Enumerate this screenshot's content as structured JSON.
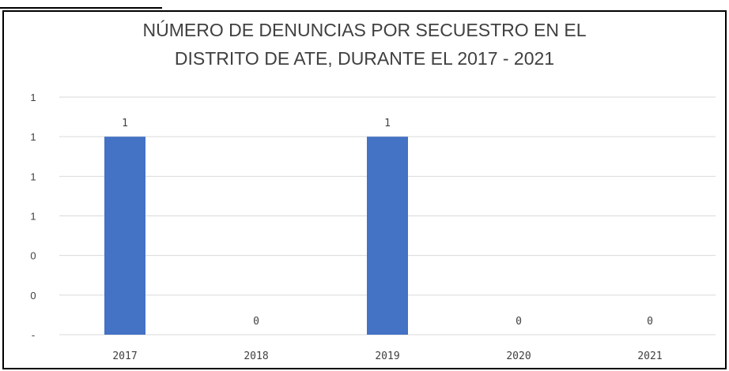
{
  "chart_data": {
    "type": "bar",
    "title_lines": [
      "NÚMERO DE DENUNCIAS POR SECUESTRO EN EL",
      "DISTRITO DE ATE, DURANTE EL 2017 - 2021"
    ],
    "categories": [
      "2017",
      "2018",
      "2019",
      "2020",
      "2021"
    ],
    "values": [
      1,
      0,
      1,
      0,
      0
    ],
    "data_labels": [
      "1",
      "0",
      "1",
      "0",
      "0"
    ],
    "ytick_labels": [
      "-",
      "0",
      "0",
      "1",
      "1",
      "1",
      "1"
    ],
    "ylim": [
      0,
      1.2
    ],
    "ytick_step": 0.2,
    "grid": true,
    "legend": "none",
    "colors": {
      "bar": "#4472c4",
      "grid": "#d9d9d9",
      "text": "#404040",
      "frame": "#000000"
    }
  }
}
